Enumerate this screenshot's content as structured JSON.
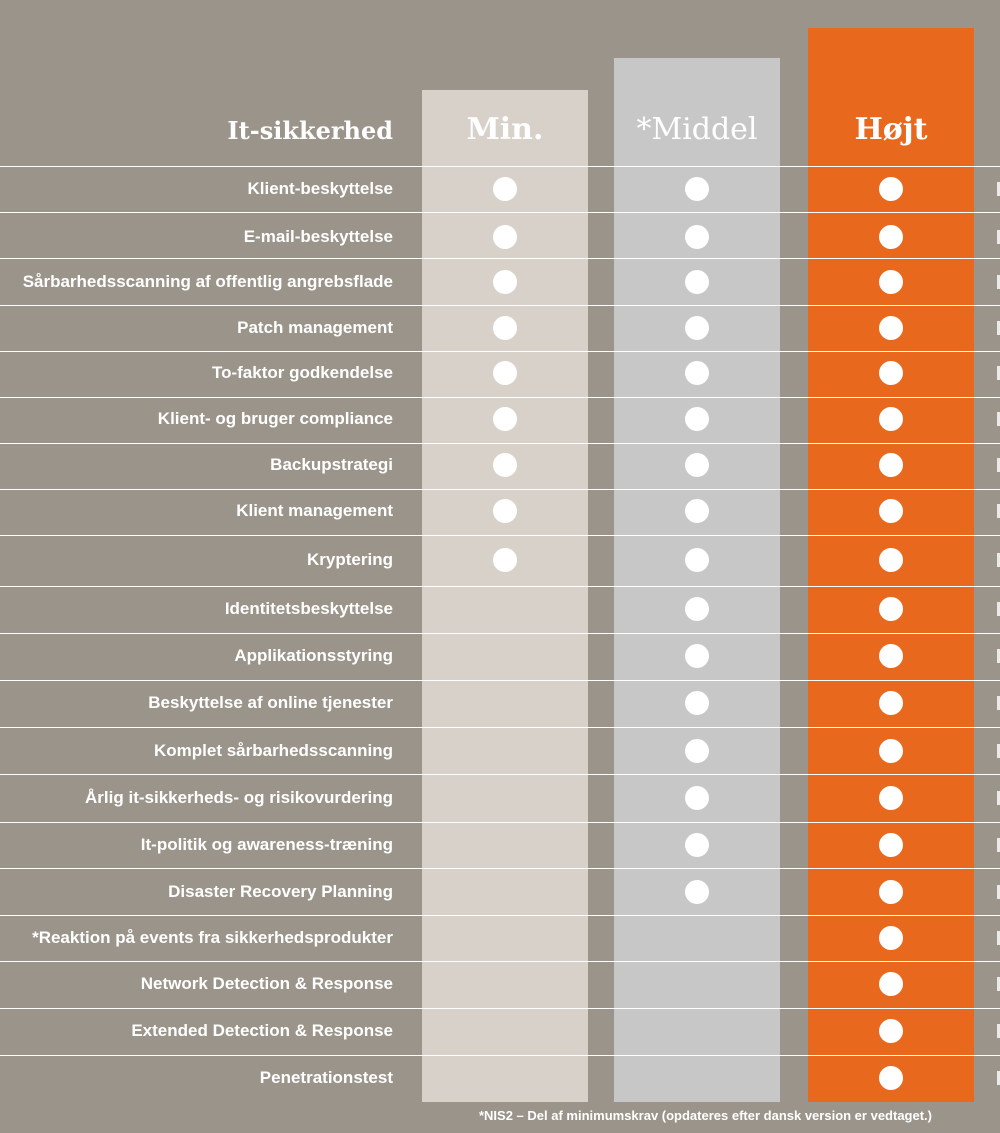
{
  "table": {
    "section_title": "It-sikkerhed",
    "columns": [
      {
        "label": "Min.",
        "color": "#d8d1ca"
      },
      {
        "label": "*Middel",
        "color": "#c7c7c7"
      },
      {
        "label": "Højt",
        "color": "#e8681e"
      }
    ],
    "rows": [
      {
        "label": "Klient-beskyttelse",
        "included": [
          true,
          true,
          true
        ]
      },
      {
        "label": "E-mail-beskyttelse",
        "included": [
          true,
          true,
          true
        ]
      },
      {
        "label": "Sårbarhedsscanning af offentlig angrebsflade",
        "included": [
          true,
          true,
          true
        ]
      },
      {
        "label": "Patch management",
        "included": [
          true,
          true,
          true
        ]
      },
      {
        "label": "To-faktor godkendelse",
        "included": [
          true,
          true,
          true
        ]
      },
      {
        "label": "Klient- og bruger compliance",
        "included": [
          true,
          true,
          true
        ]
      },
      {
        "label": "Backupstrategi",
        "included": [
          true,
          true,
          true
        ]
      },
      {
        "label": "Klient management",
        "included": [
          true,
          true,
          true
        ]
      },
      {
        "label": "Kryptering",
        "included": [
          true,
          true,
          true
        ]
      },
      {
        "label": "Identitetsbeskyttelse",
        "included": [
          false,
          true,
          true
        ]
      },
      {
        "label": "Applikationsstyring",
        "included": [
          false,
          true,
          true
        ]
      },
      {
        "label": "Beskyttelse af online tjenester",
        "included": [
          false,
          true,
          true
        ]
      },
      {
        "label": "Komplet sårbarhedsscanning",
        "included": [
          false,
          true,
          true
        ]
      },
      {
        "label": "Årlig it-sikkerheds- og risikovurdering",
        "included": [
          false,
          true,
          true
        ]
      },
      {
        "label": "It-politik og awareness-træning",
        "included": [
          false,
          true,
          true
        ]
      },
      {
        "label": "Disaster Recovery Planning",
        "included": [
          false,
          true,
          true
        ]
      },
      {
        "label": "*Reaktion på events fra sikkerhedsprodukter",
        "included": [
          false,
          false,
          true
        ]
      },
      {
        "label": "Network Detection & Response",
        "included": [
          false,
          false,
          true
        ]
      },
      {
        "label": "Extended Detection & Response",
        "included": [
          false,
          false,
          true
        ]
      },
      {
        "label": "Penetrationstest",
        "included": [
          false,
          false,
          true
        ]
      }
    ],
    "footnote": "*NIS2 – Del af minimumskrav (opdateres efter dansk version er vedtaget.)"
  },
  "colors": {
    "background": "#9b948a",
    "accent": "#e8681e",
    "dot": "#ffffff"
  }
}
